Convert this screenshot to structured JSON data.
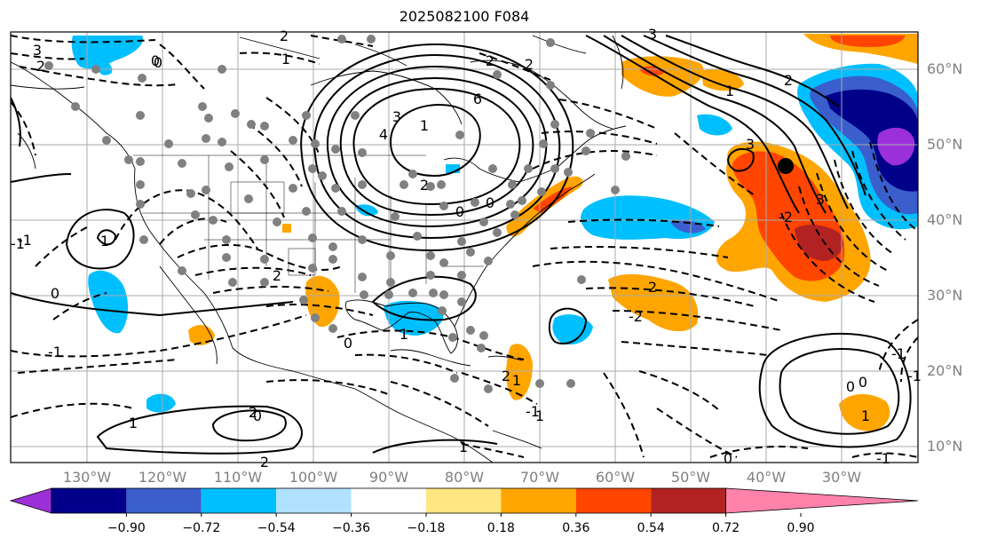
{
  "title": "2025082100 F084",
  "lon_labels": [
    "130°W",
    "120°W",
    "110°W",
    "100°W",
    "90°W",
    "80°W",
    "70°W",
    "60°W",
    "50°W",
    "40°W",
    "30°W"
  ],
  "lat_labels": [
    "60°N",
    "50°N",
    "40°N",
    "30°N",
    "20°N",
    "10°N"
  ],
  "colorbar": {
    "ticks": [
      "−0.90",
      "−0.72",
      "−0.54",
      "−0.36",
      "−0.18",
      "0.18",
      "0.36",
      "0.54",
      "0.72",
      "0.90"
    ],
    "colors": [
      "#9b30d9",
      "#00008b",
      "#3a5fcd",
      "#00bfff",
      "#b0e2ff",
      "#ffffff",
      "#ffe680",
      "#ffa500",
      "#ff4500",
      "#b22222",
      "#ff82ab"
    ]
  },
  "contour_labels": [
    "3",
    "2",
    "2",
    "0",
    "1",
    "2",
    "2",
    "3",
    "1",
    "6",
    "4",
    "2",
    "3",
    "3",
    "2",
    "1",
    "1",
    "0",
    "-1",
    "1",
    "2",
    "2",
    "0",
    "1",
    "-1",
    "0",
    "1",
    "2",
    "2",
    "1",
    "0",
    "-1",
    "0",
    "0",
    "-1",
    "1",
    "2",
    "-2",
    "-1",
    "3",
    "-2",
    "-1",
    "0",
    "1",
    "0",
    "-1",
    "0"
  ]
}
